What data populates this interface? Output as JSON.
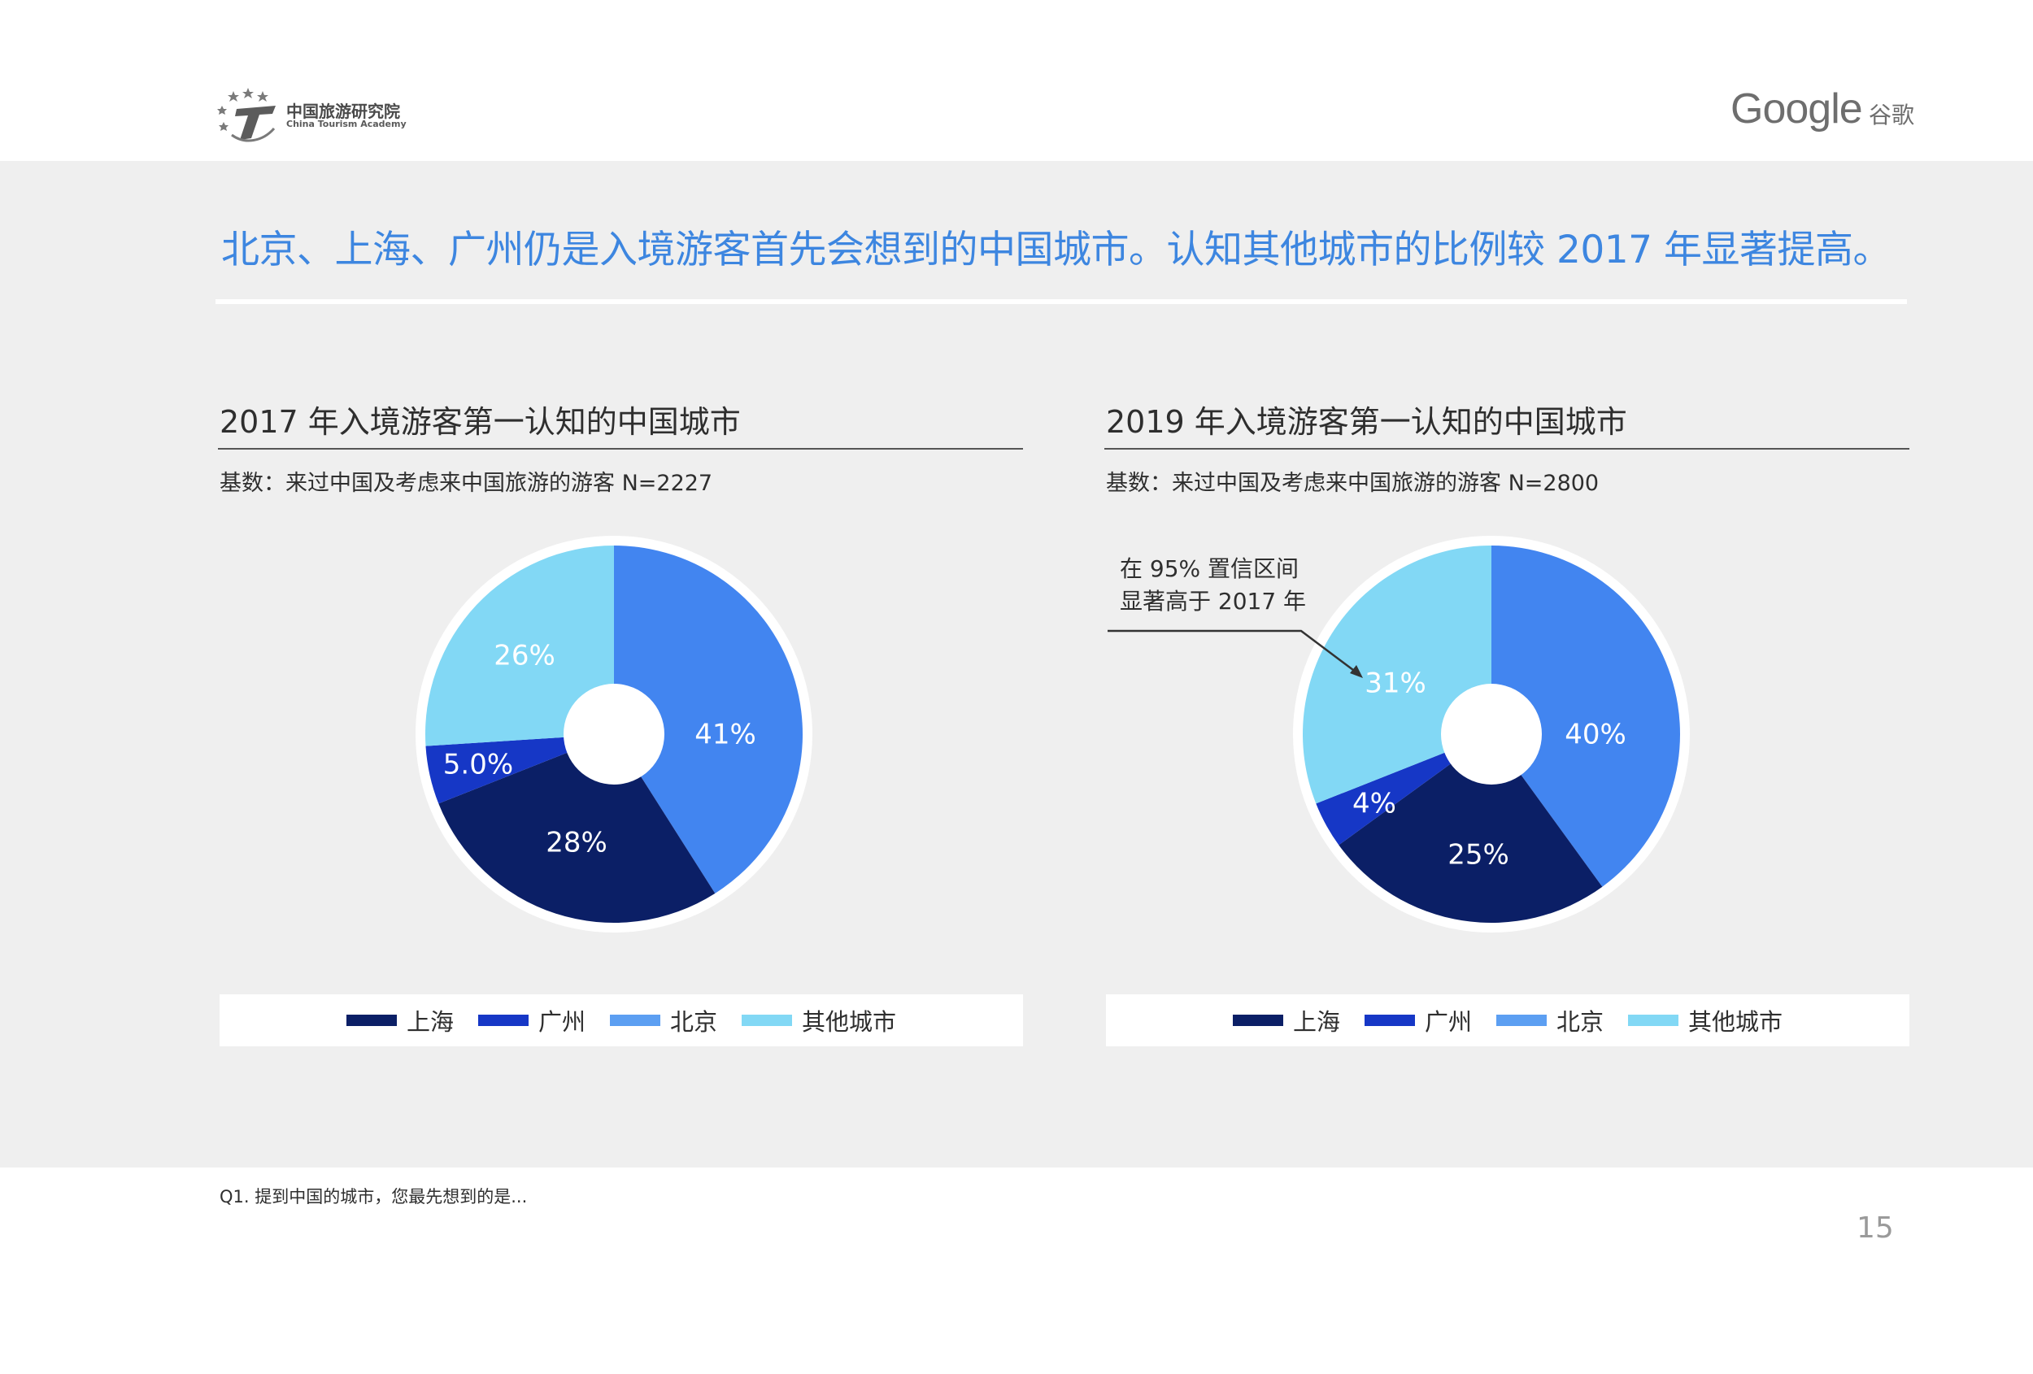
{
  "header": {
    "org_name": "中国旅游研究院",
    "org_name_en": "China Tourism Academy",
    "google_logo": "Google",
    "google_cn": "谷歌"
  },
  "headline": "北京、上海、广州仍是入境游客首先会想到的中国城市。认知其他城市的比例较 2017 年显著提高。",
  "colors": {
    "shanghai": "#0b1f66",
    "guangzhou": "#1637c6",
    "beijing": "#4285f0",
    "other": "#82d8f5",
    "headline": "#3d86e0"
  },
  "legend": [
    {
      "label": "上海",
      "color": "#0b1f66"
    },
    {
      "label": "广州",
      "color": "#1637c6"
    },
    {
      "label": "北京",
      "color": "#4285f0"
    },
    {
      "label": "其他城市",
      "color": "#82d8f5"
    }
  ],
  "chart_data": [
    {
      "type": "pie",
      "title": "2017 年入境游客第一认知的中国城市",
      "base_note": "基数：来过中国及考虑来中国旅游的游客 N=2227",
      "categories": [
        "北京",
        "上海",
        "广州",
        "其他城市"
      ],
      "values": [
        41,
        28,
        5.0,
        26
      ],
      "labels": [
        "41%",
        "28%",
        "5.0%",
        "26%"
      ],
      "colors": [
        "#4285f0",
        "#0b1f66",
        "#1637c6",
        "#82d8f5"
      ],
      "donut": true
    },
    {
      "type": "pie",
      "title": "2019 年入境游客第一认知的中国城市",
      "base_note": "基数：来过中国及考虑来中国旅游的游客 N=2800",
      "categories": [
        "北京",
        "上海",
        "广州",
        "其他城市"
      ],
      "values": [
        40,
        25,
        4,
        31
      ],
      "labels": [
        "40%",
        "25%",
        "4%",
        "31%"
      ],
      "colors": [
        "#4285f0",
        "#0b1f66",
        "#1637c6",
        "#82d8f5"
      ],
      "donut": true,
      "annotation": {
        "lines": [
          "在 95% 置信区间",
          "显著高于 2017 年"
        ],
        "target_category": "其他城市"
      }
    }
  ],
  "footnote": "Q1. 提到中国的城市，您最先想到的是...",
  "page_number": "15"
}
